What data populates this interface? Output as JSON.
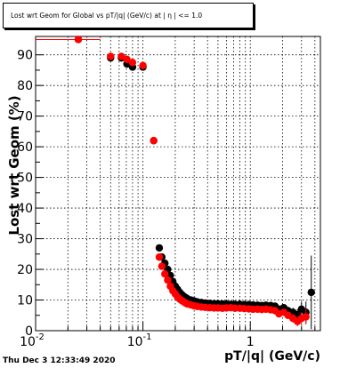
{
  "chart_data": {
    "type": "scatter",
    "title": "Lost wrt Geom for Global vs pT/|q| (GeV/c) at | η | <= 1.0",
    "xlabel": "pT/|q| (GeV/c)",
    "ylabel": "Lost wrt Geom (%)",
    "xscale": "log",
    "xlim": [
      0.01,
      4.5
    ],
    "ylim": [
      0,
      96
    ],
    "grid": true,
    "x_tick_labels": [
      "10^{-2}",
      "10^{-1}",
      "1"
    ],
    "y_tick_labels": [
      "0",
      "10",
      "20",
      "30",
      "40",
      "50",
      "60",
      "70",
      "80",
      "90"
    ],
    "series": [
      {
        "color": "#000000",
        "points": [
          [
            0.025,
            95
          ],
          [
            0.05,
            89
          ],
          [
            0.063,
            89
          ],
          [
            0.071,
            87
          ],
          [
            0.08,
            86
          ],
          [
            0.1,
            86
          ],
          [
            0.126,
            62
          ],
          [
            0.142,
            27
          ],
          [
            0.15,
            24
          ],
          [
            0.16,
            22
          ],
          [
            0.17,
            20
          ],
          [
            0.18,
            18
          ],
          [
            0.19,
            16
          ],
          [
            0.2,
            14.5
          ],
          [
            0.21,
            13.5
          ],
          [
            0.22,
            12.5
          ],
          [
            0.23,
            11.8
          ],
          [
            0.24,
            11.2
          ],
          [
            0.25,
            10.8
          ],
          [
            0.26,
            10.4
          ],
          [
            0.28,
            10.0
          ],
          [
            0.3,
            9.7
          ],
          [
            0.32,
            9.4
          ],
          [
            0.35,
            9.2
          ],
          [
            0.38,
            9.0
          ],
          [
            0.42,
            8.9
          ],
          [
            0.46,
            8.8
          ],
          [
            0.5,
            8.8
          ],
          [
            0.55,
            8.7
          ],
          [
            0.6,
            8.7
          ],
          [
            0.66,
            8.6
          ],
          [
            0.72,
            8.6
          ],
          [
            0.8,
            8.6
          ],
          [
            0.88,
            8.5
          ],
          [
            0.97,
            8.5
          ],
          [
            1.06,
            8.4
          ],
          [
            1.17,
            8.3
          ],
          [
            1.28,
            8.2
          ],
          [
            1.4,
            8.3
          ],
          [
            1.55,
            8.2
          ],
          [
            1.7,
            8.0
          ],
          [
            1.85,
            7.0
          ],
          [
            2.05,
            7.5
          ],
          [
            2.25,
            6.5
          ],
          [
            2.5,
            6.0
          ],
          [
            2.75,
            5.2
          ],
          [
            3.0,
            7.0
          ],
          [
            3.3,
            6.0
          ],
          [
            3.7,
            12.5
          ]
        ],
        "errors": [
          0.3,
          0.5,
          0.5,
          0.5,
          0.5,
          0.6,
          0.8,
          0.8,
          0.7,
          0.6,
          0.6,
          0.5,
          0.5,
          0.5,
          0.5,
          0.5,
          0.4,
          0.4,
          0.4,
          0.4,
          0.4,
          0.4,
          0.4,
          0.4,
          0.4,
          0.4,
          0.4,
          0.4,
          0.4,
          0.4,
          0.4,
          0.4,
          0.4,
          0.5,
          0.5,
          0.5,
          0.6,
          0.7,
          0.8,
          0.9,
          1.0,
          1.1,
          1.2,
          1.3,
          1.5,
          1.8,
          2.5,
          3.5,
          12.0
        ]
      },
      {
        "color": "#ff0000",
        "points": [
          [
            0.025,
            95
          ],
          [
            0.05,
            89.5
          ],
          [
            0.063,
            89.5
          ],
          [
            0.071,
            88.5
          ],
          [
            0.08,
            87.5
          ],
          [
            0.1,
            86.5
          ],
          [
            0.126,
            62
          ],
          [
            0.142,
            24
          ],
          [
            0.15,
            21
          ],
          [
            0.16,
            18.5
          ],
          [
            0.17,
            16.5
          ],
          [
            0.18,
            14.5
          ],
          [
            0.19,
            13.0
          ],
          [
            0.2,
            12.0
          ],
          [
            0.21,
            11.0
          ],
          [
            0.22,
            10.3
          ],
          [
            0.23,
            9.8
          ],
          [
            0.24,
            9.4
          ],
          [
            0.25,
            9.0
          ],
          [
            0.26,
            8.7
          ],
          [
            0.28,
            8.4
          ],
          [
            0.3,
            8.1
          ],
          [
            0.32,
            7.9
          ],
          [
            0.35,
            7.7
          ],
          [
            0.38,
            7.6
          ],
          [
            0.42,
            7.5
          ],
          [
            0.46,
            7.4
          ],
          [
            0.5,
            7.4
          ],
          [
            0.55,
            7.3
          ],
          [
            0.6,
            7.4
          ],
          [
            0.66,
            7.5
          ],
          [
            0.72,
            7.3
          ],
          [
            0.8,
            7.3
          ],
          [
            0.88,
            7.2
          ],
          [
            0.97,
            7.1
          ],
          [
            1.06,
            7.0
          ],
          [
            1.17,
            7.0
          ],
          [
            1.28,
            6.9
          ],
          [
            1.4,
            7.0
          ],
          [
            1.55,
            6.8
          ],
          [
            1.7,
            6.5
          ],
          [
            1.85,
            5.5
          ],
          [
            2.05,
            6.0
          ],
          [
            2.25,
            5.0
          ],
          [
            2.5,
            4.0
          ],
          [
            2.75,
            3.0
          ],
          [
            3.0,
            4.0
          ],
          [
            3.3,
            4.5
          ]
        ],
        "errors": [
          0.3,
          0.5,
          0.5,
          0.5,
          0.5,
          0.6,
          0.8,
          0.7,
          0.6,
          0.6,
          0.5,
          0.5,
          0.5,
          0.5,
          0.4,
          0.4,
          0.4,
          0.4,
          0.4,
          0.4,
          0.4,
          0.4,
          0.4,
          0.4,
          0.4,
          0.4,
          0.4,
          0.4,
          0.4,
          0.4,
          0.4,
          0.4,
          0.4,
          0.4,
          0.4,
          0.5,
          0.5,
          0.6,
          0.7,
          0.8,
          0.9,
          1.0,
          1.1,
          1.2,
          1.4,
          1.6,
          2.0,
          2.5
        ]
      }
    ]
  },
  "footer": {
    "date": "Thu Dec  3 12:33:49 2020"
  }
}
